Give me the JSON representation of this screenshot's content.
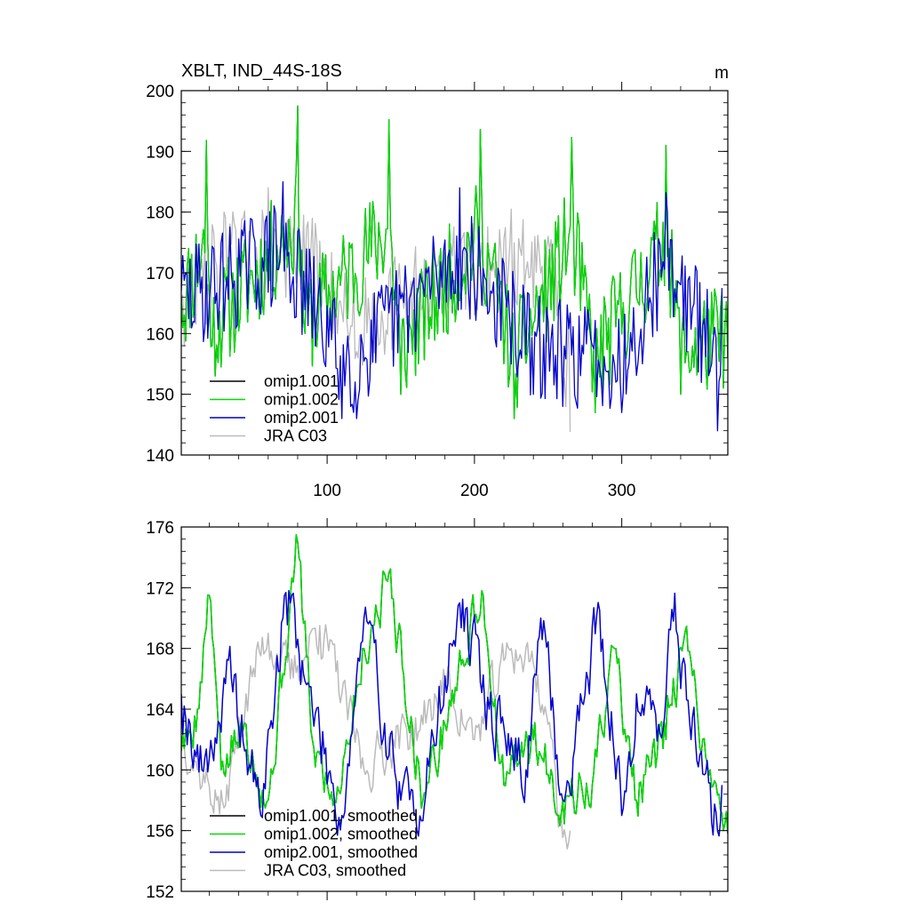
{
  "chart_data": [
    {
      "type": "line",
      "title": "XBLT, IND_44S-18S",
      "units": "m",
      "xlim": [
        1,
        372
      ],
      "ylim": [
        140,
        200
      ],
      "xticks": [
        100,
        200,
        300
      ],
      "xtick_labels": [
        "100",
        "200",
        "300"
      ],
      "yticks": [
        140,
        150,
        160,
        170,
        180,
        190,
        200
      ],
      "ytick_labels": [
        "140",
        "150",
        "160",
        "170",
        "180",
        "190",
        "200"
      ],
      "legend_position": "bottom-left",
      "series": [
        {
          "name": "omip1.001",
          "color": "#000000",
          "n": 372,
          "mean": 163,
          "amp": 9,
          "seed": 11,
          "anchors": [
            [
              1,
              166
            ],
            [
              18,
              191.8
            ],
            [
              22,
              158
            ],
            [
              80,
              197.5
            ],
            [
              85,
              160
            ],
            [
              142,
              195.2
            ],
            [
              150,
              150
            ],
            [
              204,
              193.6
            ],
            [
              227,
              146
            ],
            [
              266,
              192.3
            ],
            [
              282,
              147
            ],
            [
              330,
              191
            ],
            [
              340,
              150
            ],
            [
              372,
              156
            ]
          ]
        },
        {
          "name": "omip1.002",
          "color": "#00dd00",
          "n": 372,
          "mean": 163,
          "amp": 9,
          "seed": 11,
          "anchors": [
            [
              1,
              166
            ],
            [
              18,
              191.8
            ],
            [
              22,
              158
            ],
            [
              80,
              197.5
            ],
            [
              85,
              160
            ],
            [
              142,
              195.2
            ],
            [
              150,
              150
            ],
            [
              204,
              193.6
            ],
            [
              227,
              146
            ],
            [
              266,
              192.3
            ],
            [
              282,
              147
            ],
            [
              330,
              191
            ],
            [
              340,
              150
            ],
            [
              372,
              156
            ]
          ]
        },
        {
          "name": "omip2.001",
          "color": "#0000cc",
          "n": 368,
          "mean": 164,
          "amp": 9,
          "seed": 29,
          "anchors": [
            [
              1,
              167
            ],
            [
              70,
              185
            ],
            [
              110,
              146
            ],
            [
              120,
              146
            ],
            [
              190,
              184
            ],
            [
              240,
              150
            ],
            [
              260,
              148
            ],
            [
              300,
              147
            ],
            [
              330,
              183.2
            ],
            [
              365,
              144
            ],
            [
              368,
              167.5
            ]
          ]
        },
        {
          "name": "JRA C03",
          "color": "#bbbbbb",
          "n": 265,
          "mean": 165,
          "amp": 8,
          "seed": 47,
          "anchors": [
            [
              1,
              166
            ],
            [
              30,
              180
            ],
            [
              60,
              184
            ],
            [
              90,
              179
            ],
            [
              120,
              157
            ],
            [
              180,
              175
            ],
            [
              225,
              180.5
            ],
            [
              250,
              176
            ],
            [
              262,
              148
            ],
            [
              265,
              143.8
            ]
          ]
        }
      ]
    },
    {
      "type": "line",
      "title": "",
      "xlim": [
        1,
        372
      ],
      "ylim": [
        152,
        176
      ],
      "xticks": [
        100,
        200,
        300
      ],
      "xtick_labels": [],
      "yticks": [
        152,
        156,
        160,
        164,
        168,
        172,
        176
      ],
      "ytick_labels": [
        "152",
        "156",
        "160",
        "164",
        "168",
        "172",
        "176"
      ],
      "legend_position": "bottom-left",
      "series": [
        {
          "name": "omip1.001, smoothed",
          "color": "#000000",
          "n": 372,
          "mean": 163,
          "amp": 1.6,
          "seed": 5,
          "anchors": [
            [
              5,
              162
            ],
            [
              12,
              164
            ],
            [
              20,
              171.5
            ],
            [
              28,
              160
            ],
            [
              45,
              163
            ],
            [
              60,
              158
            ],
            [
              80,
              175
            ],
            [
              90,
              162
            ],
            [
              105,
              158
            ],
            [
              125,
              168
            ],
            [
              142,
              173
            ],
            [
              165,
              158
            ],
            [
              180,
              163
            ],
            [
              200,
              170
            ],
            [
              205,
              171.8
            ],
            [
              220,
              159
            ],
            [
              240,
              162
            ],
            [
              260,
              158
            ],
            [
              280,
              159
            ],
            [
              295,
              168
            ],
            [
              310,
              158
            ],
            [
              330,
              162
            ],
            [
              342,
              168.5
            ],
            [
              360,
              160
            ],
            [
              372,
              155.8
            ]
          ]
        },
        {
          "name": "omip1.002, smoothed",
          "color": "#00dd00",
          "n": 372,
          "mean": 163,
          "amp": 1.6,
          "seed": 5,
          "anchors": [
            [
              5,
              162
            ],
            [
              12,
              164
            ],
            [
              20,
              171.5
            ],
            [
              28,
              160
            ],
            [
              45,
              163
            ],
            [
              60,
              158
            ],
            [
              80,
              175
            ],
            [
              90,
              162
            ],
            [
              105,
              158
            ],
            [
              125,
              168
            ],
            [
              142,
              173
            ],
            [
              165,
              158
            ],
            [
              180,
              163
            ],
            [
              200,
              170
            ],
            [
              205,
              171.8
            ],
            [
              220,
              159
            ],
            [
              240,
              162
            ],
            [
              260,
              158
            ],
            [
              280,
              159
            ],
            [
              295,
              168
            ],
            [
              310,
              158
            ],
            [
              330,
              162
            ],
            [
              342,
              168.5
            ],
            [
              360,
              160
            ],
            [
              372,
              155.8
            ]
          ]
        },
        {
          "name": "omip2.001, smoothed",
          "color": "#0000cc",
          "n": 368,
          "mean": 163.5,
          "amp": 2,
          "seed": 19,
          "anchors": [
            [
              1,
              165
            ],
            [
              15,
              160
            ],
            [
              35,
              166
            ],
            [
              55,
              157
            ],
            [
              70,
              170
            ],
            [
              75,
              171
            ],
            [
              90,
              164
            ],
            [
              110,
              157
            ],
            [
              125,
              170
            ],
            [
              150,
              158
            ],
            [
              160,
              157
            ],
            [
              175,
              163
            ],
            [
              190,
              171
            ],
            [
              210,
              164
            ],
            [
              235,
              160
            ],
            [
              245,
              170
            ],
            [
              260,
              158
            ],
            [
              285,
              170.5
            ],
            [
              300,
              157
            ],
            [
              310,
              165
            ],
            [
              325,
              163
            ],
            [
              335,
              169.8
            ],
            [
              350,
              162
            ],
            [
              365,
              156
            ],
            [
              368,
              159
            ]
          ]
        },
        {
          "name": "JRA C03, smoothed",
          "color": "#bbbbbb",
          "n": 265,
          "mean": 164,
          "amp": 1.5,
          "seed": 37,
          "anchors": [
            [
              1,
              163
            ],
            [
              12,
              160
            ],
            [
              30,
              157.5
            ],
            [
              45,
              165
            ],
            [
              60,
              169
            ],
            [
              75,
              166
            ],
            [
              95,
              169.5
            ],
            [
              110,
              165
            ],
            [
              125,
              160
            ],
            [
              145,
              162
            ],
            [
              165,
              163
            ],
            [
              180,
              166
            ],
            [
              200,
              162
            ],
            [
              225,
              168
            ],
            [
              240,
              167
            ],
            [
              250,
              163
            ],
            [
              258,
              157
            ],
            [
              262,
              155.5
            ],
            [
              265,
              156
            ]
          ]
        }
      ]
    }
  ]
}
